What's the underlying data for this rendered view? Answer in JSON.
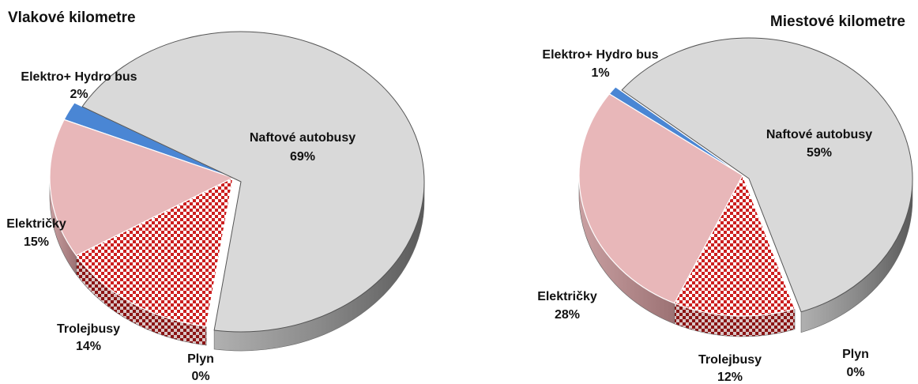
{
  "chart_data": [
    {
      "type": "pie",
      "title": "Vlakové kilometre",
      "slices": [
        {
          "label": "Naftové autobusy",
          "value_label": "69%",
          "value": 69,
          "color": "#d9d9d9",
          "pattern": "none"
        },
        {
          "label": "Plyn",
          "value_label": "0%",
          "value": 0,
          "color": "#ffffff",
          "pattern": "none"
        },
        {
          "label": "Trolejbusy",
          "value_label": "14%",
          "value": 14,
          "color": "#cc1f1f",
          "pattern": "checker"
        },
        {
          "label": "Električky",
          "value_label": "15%",
          "value": 15,
          "color": "#e8b7b9",
          "pattern": "none"
        },
        {
          "label": "Elektro+ Hydro bus",
          "value_label": "2%",
          "value": 2,
          "color": "#4a86d4",
          "pattern": "none"
        }
      ]
    },
    {
      "type": "pie",
      "title": "Miestové kilometre",
      "slices": [
        {
          "label": "Naftové autobusy",
          "value_label": "59%",
          "value": 59,
          "color": "#d9d9d9",
          "pattern": "none"
        },
        {
          "label": "Plyn",
          "value_label": "0%",
          "value": 0,
          "color": "#ffffff",
          "pattern": "none"
        },
        {
          "label": "Trolejbusy",
          "value_label": "12%",
          "value": 12,
          "color": "#cc1f1f",
          "pattern": "checker"
        },
        {
          "label": "Električky",
          "value_label": "28%",
          "value": 28,
          "color": "#e8b7b9",
          "pattern": "none"
        },
        {
          "label": "Elektro+ Hydro bus",
          "value_label": "1%",
          "value": 1,
          "color": "#4a86d4",
          "pattern": "none"
        }
      ]
    }
  ]
}
